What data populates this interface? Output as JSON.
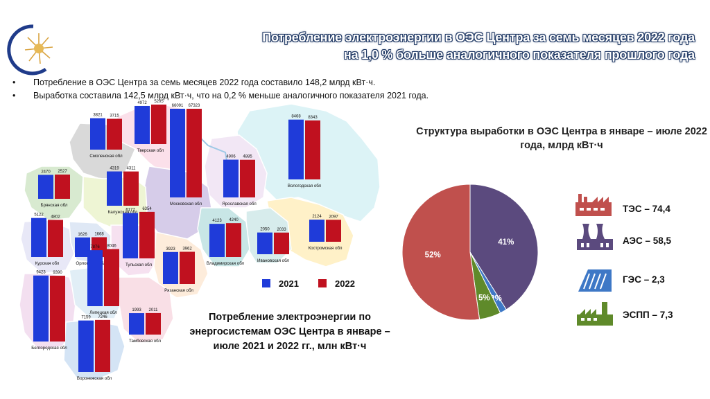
{
  "header": {
    "title_line1": "Потребление электроэнергии в ОЭС Центра за семь  месяцев 2022 года",
    "title_line2": "на 1,0 % больше аналогичного показателя прошлого года"
  },
  "bullets": [
    "Потребление в ОЭС Центра за семь месяцев 2022 года составило 148,2 млрд кВт·ч.",
    "Выработка составила 142,5 млрд кВт·ч, что на 0,2 % меньше аналогичного показателя 2021 года."
  ],
  "colors": {
    "y2021": "#1f3bd9",
    "y2022": "#c0111f",
    "tes": "#c0504d",
    "aes": "#5b4a7e",
    "ges": "#3e78c6",
    "espp": "#5f8a2a",
    "title_outline": "#1f3864"
  },
  "legend": {
    "y2021": "2021",
    "y2022": "2022"
  },
  "map_caption": "Потребление электроэнергии по энергосистемам ОЭС Центра в январе – июле 2021 и 2022 гг., млн кВт·ч",
  "pie_title": "Структура выработки в ОЭС Центра в январе – июле 2022 года, млрд кВт·ч",
  "structure_labels": {
    "tes": "ТЭС – 74,4",
    "aes": "АЭС – 58,5",
    "ges": "ГЭС – 2,3",
    "espp": "ЭСПП – 7,3"
  },
  "chart_data": [
    {
      "type": "bar",
      "title": "Потребление электроэнергии по энергосистемам ОЭС Центра в январе – июле 2021 и 2022 гг., млн кВт·ч",
      "series_names": [
        "2021",
        "2022"
      ],
      "regions": [
        {
          "name": "Смоленская обл",
          "v2021": 3821,
          "v2022": 3715
        },
        {
          "name": "Тверская обл",
          "v2021": 4972,
          "v2022": 5205
        },
        {
          "name": "Московская обл",
          "v2021": 66091,
          "v2022": 67323
        },
        {
          "name": "Ярославская обл",
          "v2021": 4906,
          "v2022": 4885
        },
        {
          "name": "Вологодская обл",
          "v2021": 8468,
          "v2022": 8343
        },
        {
          "name": "Брянская обл",
          "v2021": 2470,
          "v2022": 2527
        },
        {
          "name": "Калужская обл",
          "v2021": 4319,
          "v2022": 4311
        },
        {
          "name": "Курская обл",
          "v2021": 5122,
          "v2022": 4802
        },
        {
          "name": "Орловская обл",
          "v2021": 1626,
          "v2022": 1668
        },
        {
          "name": "Тульская обл",
          "v2021": 6177,
          "v2022": 6354
        },
        {
          "name": "Рязанская обл",
          "v2021": 3923,
          "v2022": 3962
        },
        {
          "name": "Владимирская обл",
          "v2021": 4123,
          "v2022": 4240
        },
        {
          "name": "Ивановская обл",
          "v2021": 2050,
          "v2022": 2033
        },
        {
          "name": "Костромская обл",
          "v2021": 2124,
          "v2022": 2097
        },
        {
          "name": "Белгородская обл",
          "v2021": 9423,
          "v2022": 9390
        },
        {
          "name": "Липецкая обл",
          "v2021": 7876,
          "v2022": 8046
        },
        {
          "name": "Тамбовская обл",
          "v2021": 1993,
          "v2022": 2011
        },
        {
          "name": "Воронежская обл",
          "v2021": 7159,
          "v2022": 7246
        }
      ]
    },
    {
      "type": "pie",
      "title": "Структура выработки в ОЭС Центра в январе – июле 2022 года, млрд кВт·ч",
      "slices": [
        {
          "name": "ТЭС",
          "value": 74.4,
          "label": "52%",
          "color": "#c0504d"
        },
        {
          "name": "АЭС",
          "value": 58.5,
          "label": "41%",
          "color": "#5b4a7e"
        },
        {
          "name": "ГЭС",
          "value": 2.3,
          "label": "2%",
          "color": "#3e78c6"
        },
        {
          "name": "ЭСПП",
          "value": 7.3,
          "label": "5%",
          "color": "#5f8a2a"
        }
      ]
    }
  ]
}
